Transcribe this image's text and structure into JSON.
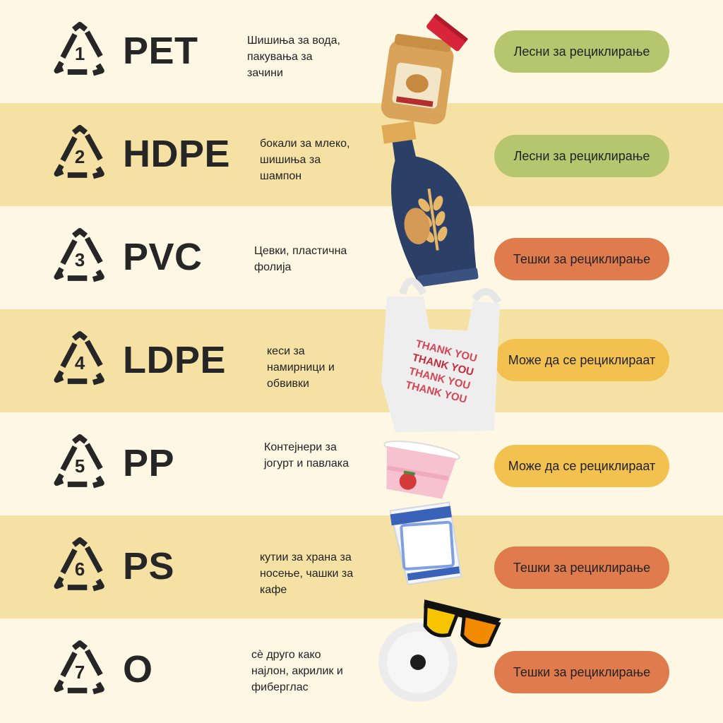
{
  "rows": [
    {
      "number": "1",
      "code": "PET",
      "description": "Шишиња за вода,\nпакувања за\nзачини",
      "status": "Лесни за рециклирање",
      "status_level": "easy"
    },
    {
      "number": "2",
      "code": "HDPE",
      "description": "бокали за млеко,\nшишиња за\nшампон",
      "status": "Лесни за рециклирање",
      "status_level": "easy"
    },
    {
      "number": "3",
      "code": "PVC",
      "description": "Цевки, пластична\nфолија",
      "status": "Тешки за рециклирање",
      "status_level": "hard"
    },
    {
      "number": "4",
      "code": "LDPE",
      "description": "кеси за\nнамирници и\nобвивки",
      "status": "Може да се рециклираат",
      "status_level": "may"
    },
    {
      "number": "5",
      "code": "PP",
      "description": "Контејнери за\nјогурт и павлака",
      "status": "Може да се рециклираат",
      "status_level": "may"
    },
    {
      "number": "6",
      "code": "PS",
      "description": "кутии за храна за\nносење, чашки за\nкафе",
      "status": "Тешки за рециклирање",
      "status_level": "hard"
    },
    {
      "number": "7",
      "code": "O",
      "description": "сè друго како\nнајлон, акрилик и\nфиберглас",
      "status": "Тешки за рециклирање",
      "status_level": "hard"
    }
  ],
  "bag_text": [
    "THANK YOU",
    "THANK YOU",
    "THANK YOU",
    "THANK YOU"
  ],
  "colors": {
    "easy": "#b6c66f",
    "hard": "#e07b4e",
    "may": "#f2c14f",
    "band_light": "#fdf7e4",
    "band_dark": "#f5e1a4"
  },
  "icons": [
    "recycle-triangle-icon",
    "peanut-butter-jar-icon",
    "milk-jug-icon",
    "plastic-bag-icon",
    "yogurt-cup-icon",
    "foam-cup-icon",
    "cd-disc-icon",
    "sunglasses-icon"
  ]
}
